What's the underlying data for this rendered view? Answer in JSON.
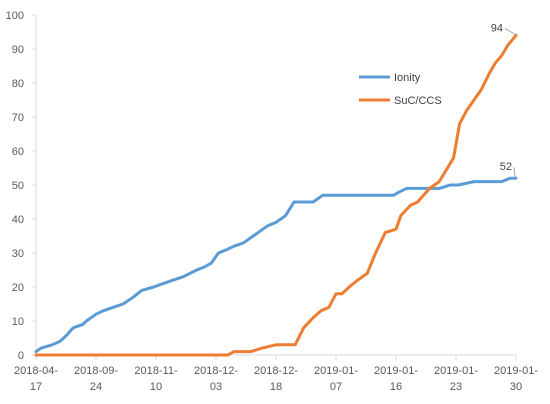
{
  "chart_data": {
    "type": "line",
    "title": "",
    "xlabel": "",
    "ylabel": "",
    "ylim": [
      0,
      100
    ],
    "y_ticks": [
      0,
      10,
      20,
      30,
      40,
      50,
      60,
      70,
      80,
      90,
      100
    ],
    "grid": false,
    "legend_position": "upper-right-inside",
    "x_tick_labels": [
      {
        "index": 0,
        "line1": "2018-04-",
        "line2": "17"
      },
      {
        "index": 1,
        "line1": "2018-09-",
        "line2": "24"
      },
      {
        "index": 2,
        "line1": "2018-11-",
        "line2": "10"
      },
      {
        "index": 3,
        "line1": "2018-12-",
        "line2": "03"
      },
      {
        "index": 4,
        "line1": "2018-12-",
        "line2": "18"
      },
      {
        "index": 5,
        "line1": "2019-01-",
        "line2": "07"
      },
      {
        "index": 6,
        "line1": "2019-01-",
        "line2": "16"
      },
      {
        "index": 7,
        "line1": "2019-01-",
        "line2": "23"
      },
      {
        "index": 8,
        "line1": "2019-01-",
        "line2": "30"
      }
    ],
    "series": [
      {
        "name": "Ionity",
        "color": "#5B9BD5",
        "x": [
          0,
          0.08,
          0.27,
          0.4,
          0.52,
          0.62,
          0.78,
          0.84,
          1.0,
          1.12,
          1.28,
          1.45,
          1.62,
          1.76,
          1.96,
          2.12,
          2.28,
          2.45,
          2.68,
          2.82,
          2.92,
          3.04,
          3.18,
          3.3,
          3.46,
          3.62,
          3.78,
          3.86,
          4.0,
          4.16,
          4.3,
          4.5,
          4.62,
          4.78,
          5.0,
          5.2,
          5.4,
          5.6,
          5.8,
          5.96,
          6.06,
          6.18,
          6.36,
          6.52,
          6.72,
          6.9,
          7.04,
          7.3,
          7.52,
          7.76,
          7.9,
          8.0
        ],
        "values": [
          1,
          2,
          3,
          4,
          6,
          8,
          9,
          10,
          12,
          13,
          14,
          15,
          17,
          19,
          20,
          21,
          22,
          23,
          25,
          26,
          27,
          30,
          31,
          32,
          33,
          35,
          37,
          38,
          39,
          41,
          45,
          45,
          45,
          47,
          47,
          47,
          47,
          47,
          47,
          47,
          48,
          49,
          49,
          49,
          49,
          50,
          50,
          51,
          51,
          51,
          52,
          52
        ],
        "end_label": "52"
      },
      {
        "name": "SuC/CCS",
        "color": "#ED7D31",
        "x": [
          0,
          1,
          2,
          3,
          3.2,
          3.3,
          3.42,
          3.58,
          3.76,
          4.0,
          4.12,
          4.32,
          4.46,
          4.62,
          4.75,
          4.88,
          5.0,
          5.1,
          5.22,
          5.36,
          5.52,
          5.66,
          5.82,
          6.0,
          6.08,
          6.24,
          6.36,
          6.56,
          6.72,
          6.96,
          7.06,
          7.18,
          7.3,
          7.42,
          7.56,
          7.66,
          7.76,
          7.86,
          8.0
        ],
        "values": [
          0,
          0,
          0,
          0,
          0,
          1,
          1,
          1,
          2,
          3,
          3,
          3,
          8,
          11,
          13,
          14,
          18,
          18,
          20,
          22,
          24,
          30,
          36,
          37,
          41,
          44,
          45,
          49,
          51,
          58,
          68,
          72,
          75,
          78,
          83,
          86,
          88,
          91,
          94
        ],
        "end_label": "94"
      }
    ]
  }
}
